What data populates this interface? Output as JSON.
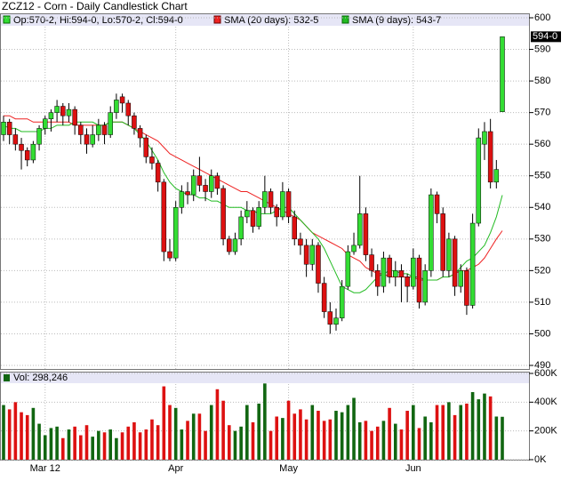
{
  "chart_data": [
    {
      "type": "candlestick",
      "title": "ZCZ12 - Corn - Daily Candlestick Chart",
      "ohlc_label": "Op:570-2, Hi:594-0, Lo:570-2, Cl:594-0",
      "last_price_label": "594-0",
      "up_color": "#33dd33",
      "down_color": "#dd1111",
      "categories": [
        null,
        null,
        null,
        null,
        null,
        null,
        null,
        "Mar 12",
        null,
        null,
        null,
        null,
        null,
        null,
        null,
        null,
        null,
        null,
        null,
        null,
        null,
        null,
        null,
        null,
        null,
        null,
        null,
        null,
        null,
        "Apr",
        null,
        null,
        null,
        null,
        null,
        null,
        null,
        null,
        null,
        null,
        null,
        null,
        null,
        null,
        null,
        null,
        null,
        null,
        "May",
        null,
        null,
        null,
        null,
        null,
        null,
        null,
        null,
        null,
        null,
        null,
        null,
        null,
        null,
        null,
        null,
        null,
        null,
        null,
        null,
        "Jun",
        null,
        null,
        null,
        null,
        null,
        null,
        null,
        null,
        null,
        null,
        null,
        null,
        null,
        null,
        null
      ],
      "ohlc": [
        [
          563,
          569,
          561,
          567
        ],
        [
          567,
          568,
          560,
          563
        ],
        [
          563,
          565,
          558,
          560
        ],
        [
          560,
          562,
          552,
          558
        ],
        [
          558,
          559,
          553,
          555
        ],
        [
          555,
          561,
          554,
          560
        ],
        [
          560,
          566,
          558,
          565
        ],
        [
          565,
          569,
          563,
          568
        ],
        [
          568,
          571,
          564,
          570
        ],
        [
          570,
          574,
          567,
          572
        ],
        [
          572,
          573,
          566,
          569
        ],
        [
          569,
          573,
          567,
          571
        ],
        [
          571,
          572,
          563,
          566
        ],
        [
          566,
          567,
          560,
          563
        ],
        [
          563,
          565,
          557,
          560
        ],
        [
          560,
          566,
          559,
          563
        ],
        [
          563,
          568,
          561,
          566
        ],
        [
          566,
          567,
          560,
          563
        ],
        [
          563,
          572,
          562,
          570
        ],
        [
          570,
          576,
          568,
          574
        ],
        [
          575,
          576,
          570,
          573
        ],
        [
          573,
          574,
          566,
          569
        ],
        [
          569,
          570,
          563,
          565
        ],
        [
          565,
          566,
          559,
          562
        ],
        [
          562,
          563,
          554,
          556
        ],
        [
          556,
          559,
          552,
          554
        ],
        [
          554,
          555,
          545,
          548
        ],
        [
          548,
          549,
          523,
          526
        ],
        [
          526,
          530,
          523,
          524
        ],
        [
          524,
          542,
          523,
          540
        ],
        [
          540,
          547,
          538,
          545
        ],
        [
          545,
          548,
          541,
          544
        ],
        [
          544,
          552,
          542,
          550
        ],
        [
          550,
          556,
          545,
          547
        ],
        [
          547,
          549,
          542,
          545
        ],
        [
          545,
          552,
          543,
          550
        ],
        [
          550,
          551,
          544,
          546
        ],
        [
          546,
          547,
          528,
          530
        ],
        [
          530,
          531,
          525,
          526
        ],
        [
          526,
          532,
          525,
          530
        ],
        [
          530,
          539,
          528,
          537
        ],
        [
          537,
          542,
          535,
          539
        ],
        [
          539,
          540,
          532,
          534
        ],
        [
          534,
          542,
          533,
          540
        ],
        [
          540,
          550,
          538,
          545
        ],
        [
          545,
          546,
          538,
          540
        ],
        [
          540,
          541,
          534,
          537
        ],
        [
          537,
          548,
          536,
          545
        ],
        [
          545,
          546,
          535,
          537
        ],
        [
          537,
          539,
          528,
          530
        ],
        [
          530,
          532,
          525,
          528
        ],
        [
          528,
          530,
          518,
          522
        ],
        [
          522,
          530,
          520,
          528
        ],
        [
          528,
          529,
          513,
          516
        ],
        [
          516,
          518,
          505,
          507
        ],
        [
          507,
          510,
          500,
          503
        ],
        [
          503,
          508,
          501,
          505
        ],
        [
          505,
          517,
          504,
          515
        ],
        [
          515,
          528,
          514,
          526
        ],
        [
          526,
          532,
          525,
          528
        ],
        [
          528,
          550,
          527,
          538
        ],
        [
          538,
          540,
          523,
          525
        ],
        [
          525,
          527,
          518,
          520
        ],
        [
          520,
          522,
          512,
          515
        ],
        [
          515,
          526,
          513,
          524
        ],
        [
          524,
          525,
          516,
          518
        ],
        [
          518,
          523,
          515,
          520
        ],
        [
          520,
          522,
          510,
          518
        ],
        [
          518,
          519,
          510,
          515
        ],
        [
          515,
          527,
          514,
          524
        ],
        [
          524,
          525,
          508,
          510
        ],
        [
          510,
          522,
          509,
          520
        ],
        [
          520,
          546,
          518,
          544
        ],
        [
          544,
          545,
          535,
          538
        ],
        [
          538,
          540,
          518,
          520
        ],
        [
          520,
          532,
          518,
          530
        ],
        [
          530,
          531,
          512,
          515
        ],
        [
          515,
          522,
          513,
          520
        ],
        [
          520,
          521,
          506,
          509
        ],
        [
          509,
          538,
          508,
          535
        ],
        [
          535,
          565,
          534,
          562
        ],
        [
          560,
          567,
          555,
          564
        ],
        [
          564,
          568,
          546,
          548
        ],
        [
          548,
          555,
          546,
          552
        ],
        [
          570.25,
          594,
          570.25,
          594
        ]
      ],
      "series": [
        {
          "name": "SMA (20 days): 532-5",
          "color": "#ee2222",
          "values": [
            569,
            569,
            568,
            568,
            568,
            567,
            567,
            567,
            567,
            567,
            567,
            567,
            566,
            566,
            566,
            566,
            566,
            566,
            567,
            567,
            567,
            566,
            565,
            564,
            563,
            562,
            561,
            559,
            557,
            556,
            555,
            554,
            553,
            552,
            551,
            550,
            549,
            548,
            547,
            546,
            545,
            545,
            544,
            543,
            542,
            541,
            540,
            539,
            538,
            537,
            536,
            534,
            532,
            531,
            530,
            529,
            528,
            527,
            525,
            524,
            523,
            521,
            520,
            519,
            519,
            518,
            518,
            518,
            518,
            518,
            517,
            517,
            517,
            517,
            518,
            518,
            519,
            520,
            520,
            521,
            522,
            524,
            527,
            530,
            532.625
          ]
        },
        {
          "name": "SMA (9 days): 543-7",
          "color": "#22bb22",
          "values": [
            566,
            565,
            565,
            564,
            564,
            564,
            564,
            565,
            565,
            566,
            566,
            566,
            567,
            567,
            567,
            567,
            566,
            566,
            567,
            567,
            567,
            566,
            565,
            563,
            561,
            558,
            555,
            551,
            548,
            546,
            545,
            544,
            544,
            543,
            543,
            542,
            542,
            541,
            540,
            540,
            540,
            539,
            539,
            538,
            538,
            538,
            539,
            540,
            540,
            538,
            536,
            534,
            532,
            530,
            527,
            523,
            519,
            515,
            514,
            513,
            513,
            514,
            516,
            518,
            519,
            520,
            520,
            519,
            519,
            518,
            518,
            517,
            517,
            517,
            518,
            518,
            519,
            521,
            523,
            524,
            526,
            528,
            532,
            537,
            543.875
          ]
        }
      ],
      "ylim": [
        490,
        600
      ],
      "yticks": [
        490,
        500,
        510,
        520,
        530,
        540,
        550,
        560,
        570,
        580,
        590,
        600
      ],
      "grid": true
    },
    {
      "type": "bar",
      "title": "Vol: 298,246",
      "color": "#116611",
      "values": [
        380000,
        350000,
        400000,
        330000,
        310000,
        360000,
        250000,
        170000,
        220000,
        230000,
        150000,
        210000,
        230000,
        170000,
        240000,
        160000,
        200000,
        190000,
        210000,
        150000,
        190000,
        230000,
        260000,
        190000,
        210000,
        280000,
        240000,
        510000,
        380000,
        360000,
        210000,
        270000,
        320000,
        320000,
        200000,
        380000,
        490000,
        410000,
        240000,
        200000,
        230000,
        380000,
        260000,
        390000,
        530000,
        200000,
        300000,
        290000,
        410000,
        320000,
        350000,
        280000,
        380000,
        340000,
        270000,
        280000,
        340000,
        330000,
        380000,
        430000,
        260000,
        270000,
        200000,
        230000,
        270000,
        360000,
        250000,
        210000,
        340000,
        380000,
        220000,
        300000,
        260000,
        380000,
        380000,
        400000,
        310000,
        380000,
        390000,
        470000,
        420000,
        460000,
        440000,
        300000,
        298246
      ],
      "ylim": [
        0,
        600000
      ],
      "yticks": [
        {
          "value": 0,
          "label": "0K"
        },
        {
          "value": 200000,
          "label": "200K"
        },
        {
          "value": 400000,
          "label": "400K"
        },
        {
          "value": 600000,
          "label": "600K"
        }
      ],
      "grid": true
    }
  ]
}
